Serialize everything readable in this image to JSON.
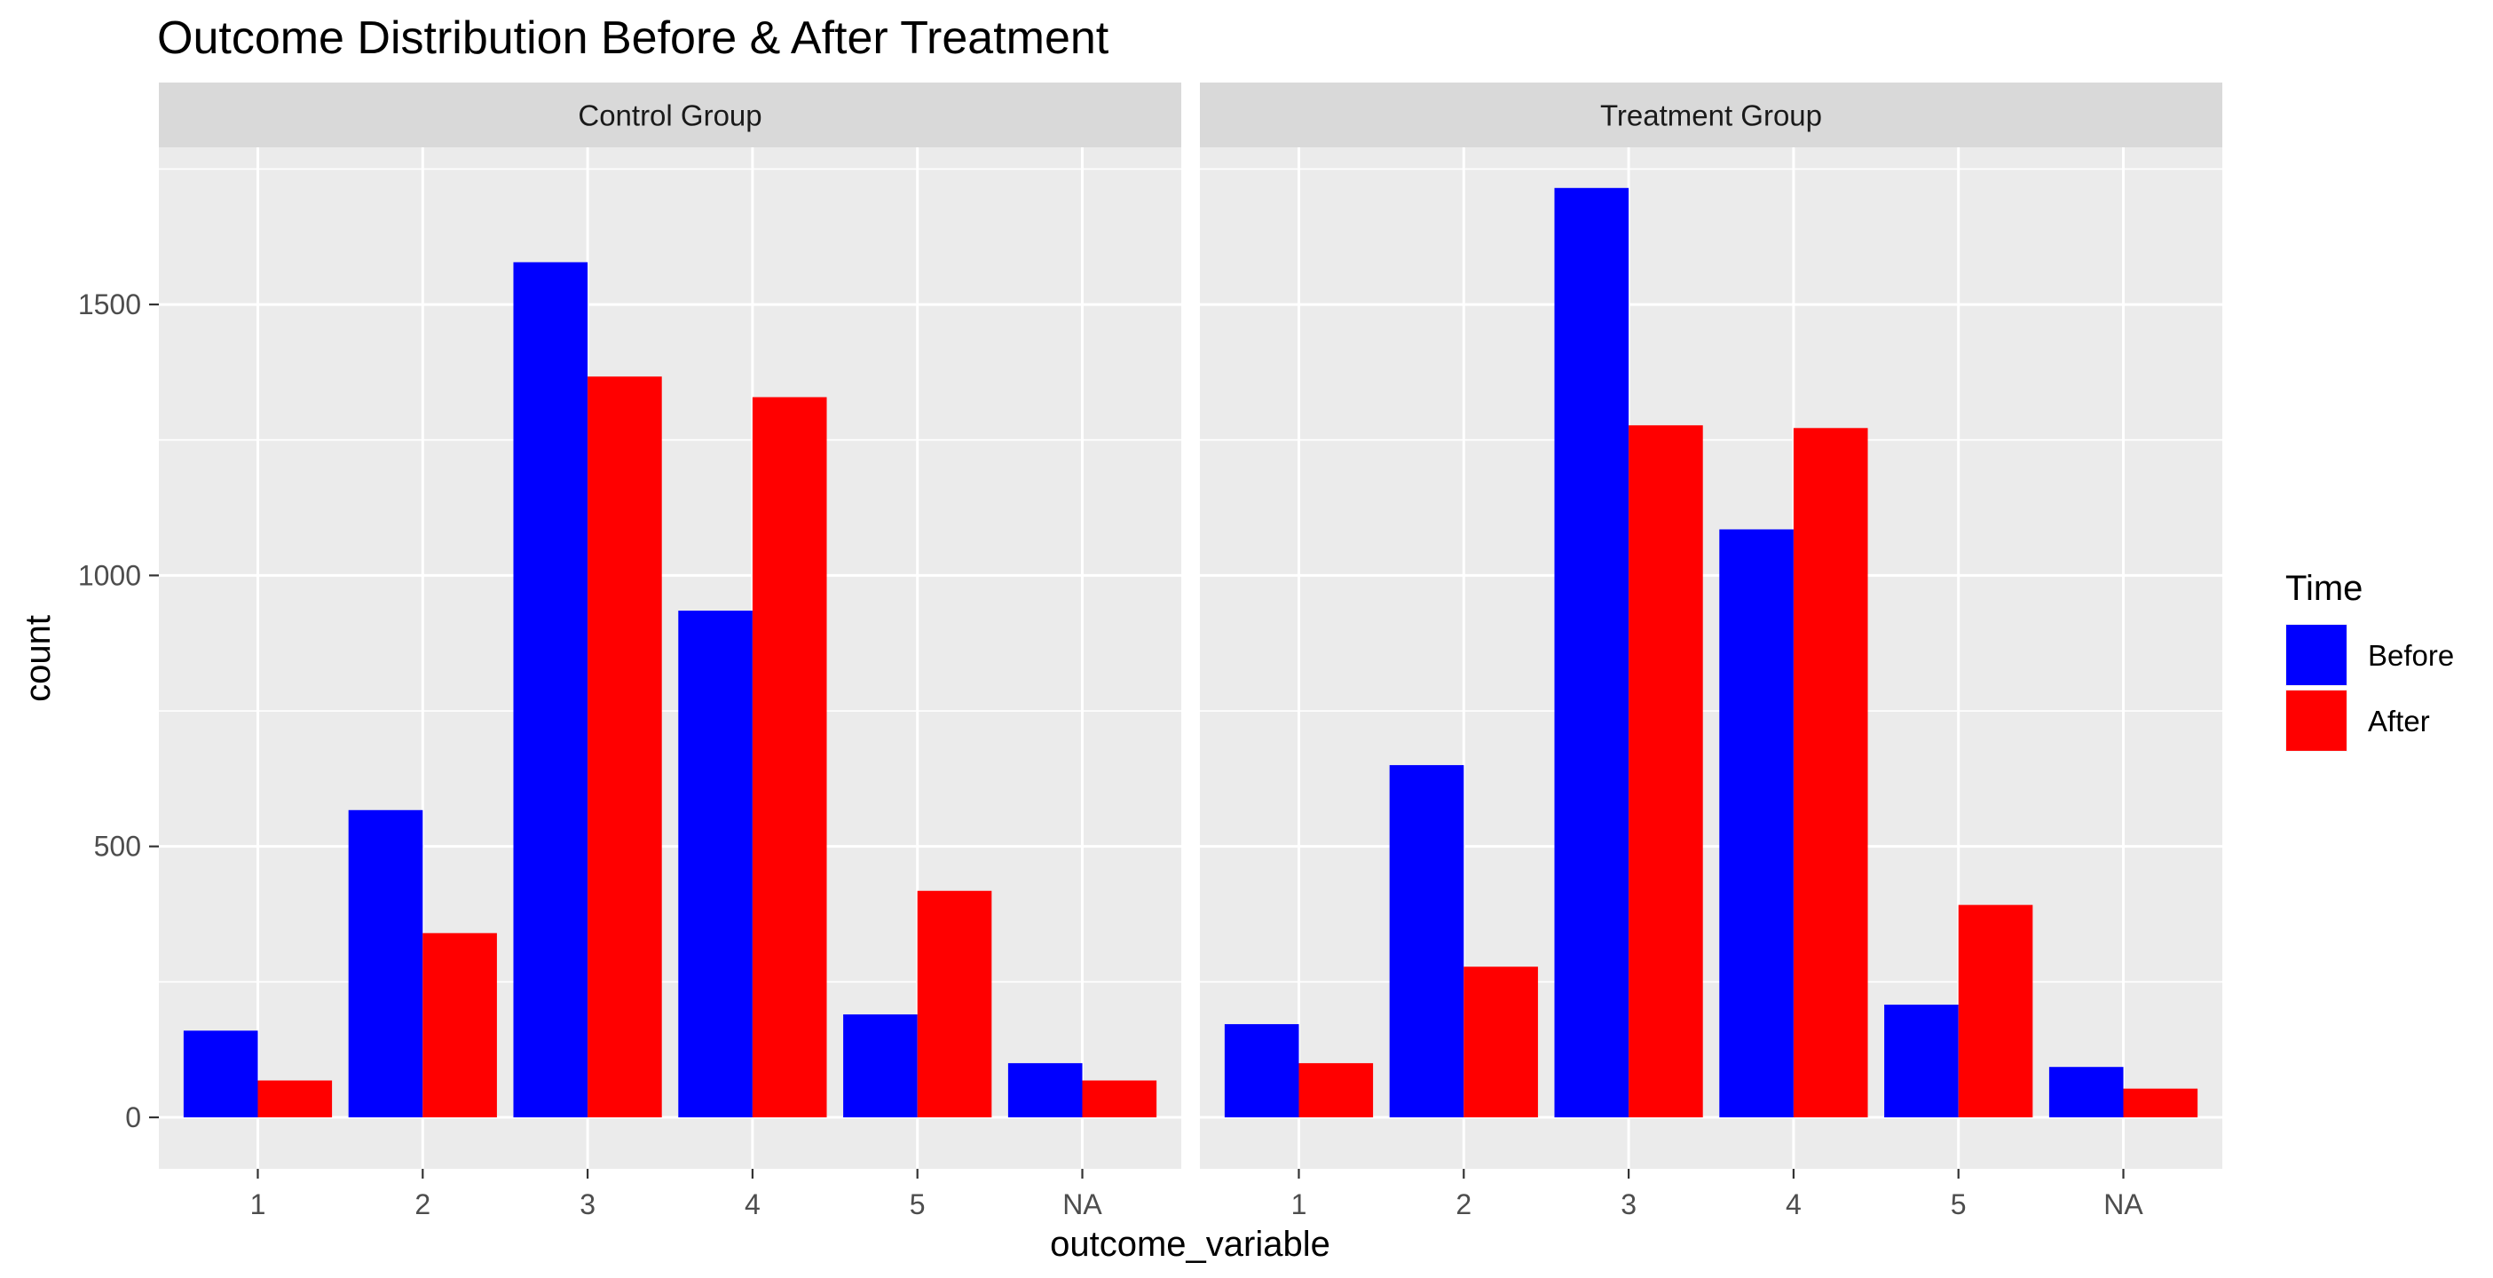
{
  "chart_data": {
    "type": "bar",
    "title": "Outcome Distribution Before & After Treatment",
    "xlabel": "outcome_variable",
    "ylabel": "count",
    "ylim": [
      -95,
      1790
    ],
    "yticks": [
      0,
      500,
      1000,
      1500
    ],
    "categories": [
      "1",
      "2",
      "3",
      "4",
      "5",
      "NA"
    ],
    "grid": true,
    "legend": {
      "title": "Time",
      "position": "right",
      "entries": [
        {
          "name": "Before",
          "color": "#0000FF"
        },
        {
          "name": "After",
          "color": "#FF0000"
        }
      ]
    },
    "panels": [
      {
        "name": "Control Group",
        "series": [
          {
            "name": "Before",
            "color": "#0000FF",
            "values": [
              160,
              567,
              1578,
              935,
              190,
              100
            ]
          },
          {
            "name": "After",
            "color": "#FF0000",
            "values": [
              68,
              340,
              1367,
              1329,
              418,
              68
            ]
          }
        ]
      },
      {
        "name": "Treatment Group",
        "series": [
          {
            "name": "Before",
            "color": "#0000FF",
            "values": [
              172,
              650,
              1715,
              1085,
              208,
              93
            ]
          },
          {
            "name": "After",
            "color": "#FF0000",
            "values": [
              100,
              278,
              1277,
              1272,
              392,
              53
            ]
          }
        ]
      }
    ]
  }
}
